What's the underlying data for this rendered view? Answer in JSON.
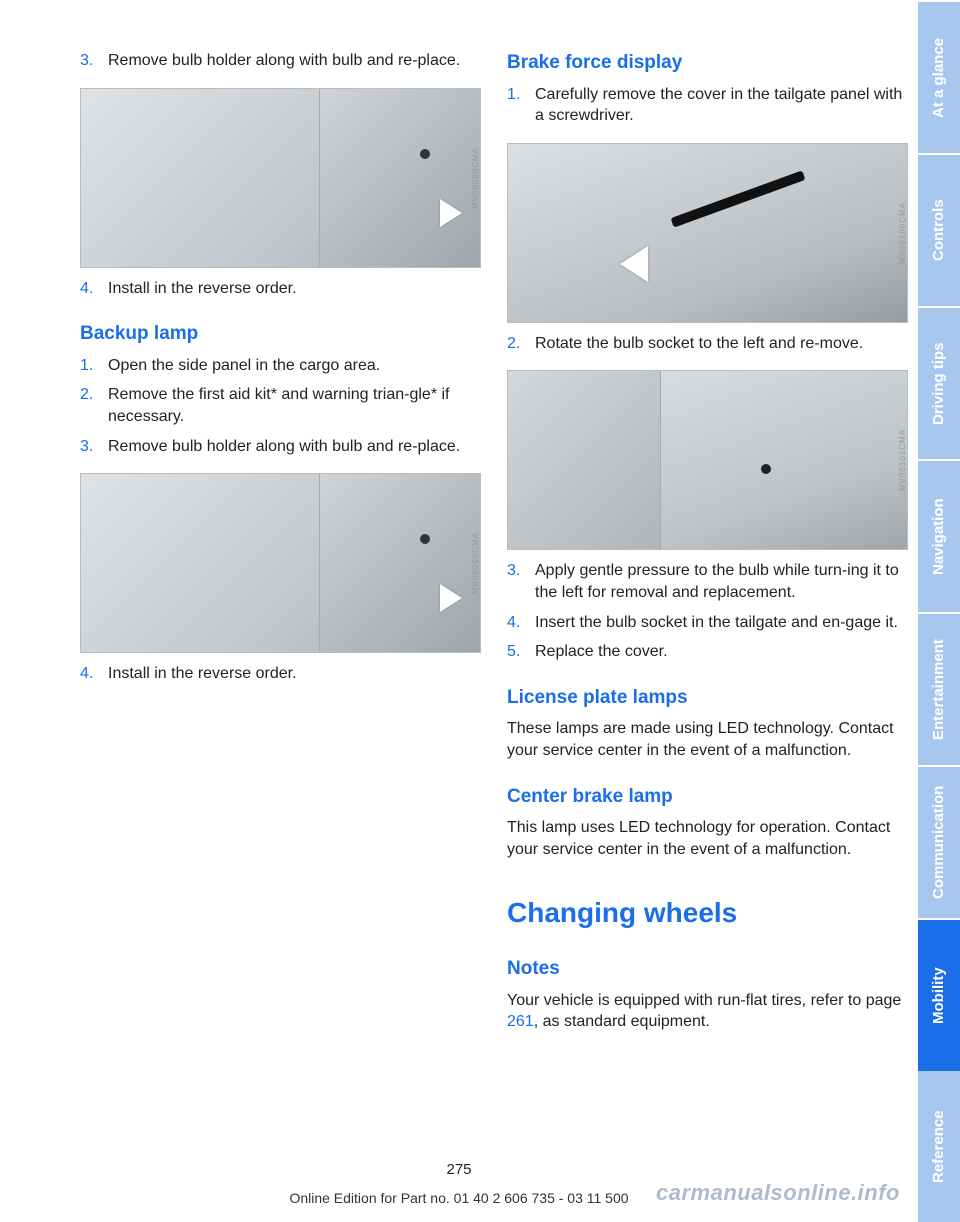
{
  "left": {
    "step3_num": "3.",
    "step3": "Remove bulb holder along with bulb and re‐place.",
    "fig1_id": "MV08099CMA",
    "step4_num": "4.",
    "step4": "Install in the reverse order.",
    "backup_heading": "Backup lamp",
    "b1_num": "1.",
    "b1": "Open the side panel in the cargo area.",
    "b2_num": "2.",
    "b2": "Remove the first aid kit* and warning trian‐gle* if necessary.",
    "b3_num": "3.",
    "b3": "Remove bulb holder along with bulb and re‐place.",
    "fig2_id": "MV08099CMA",
    "b4_num": "4.",
    "b4": "Install in the reverse order."
  },
  "right": {
    "brake_heading": "Brake force display",
    "bf1_num": "1.",
    "bf1": "Carefully remove the cover in the tailgate panel with a screwdriver.",
    "fig1_id": "MV08100CMA",
    "bf2_num": "2.",
    "bf2": "Rotate the bulb socket to the left and re‐move.",
    "fig2_id": "MV08101CMA",
    "bf3_num": "3.",
    "bf3": "Apply gentle pressure to the bulb while turn‐ing it to the left for removal and replacement.",
    "bf4_num": "4.",
    "bf4": "Insert the bulb socket in the tailgate and en‐gage it.",
    "bf5_num": "5.",
    "bf5": "Replace the cover.",
    "license_heading": "License plate lamps",
    "license_text": "These lamps are made using LED technology. Contact your service center in the event of a malfunction.",
    "center_heading": "Center brake lamp",
    "center_text": "This lamp uses LED technology for operation. Contact your service center in the event of a malfunction.",
    "changing_heading": "Changing wheels",
    "notes_heading": "Notes",
    "notes_pre": "Your vehicle is equipped with run-flat tires, refer to page ",
    "notes_link": "261",
    "notes_post": ", as standard equipment."
  },
  "tabs": {
    "t1": "At a glance",
    "t2": "Controls",
    "t3": "Driving tips",
    "t4": "Navigation",
    "t5": "Entertainment",
    "t6": "Communication",
    "t7": "Mobility",
    "t8": "Reference"
  },
  "footer": {
    "page": "275",
    "edition": "Online Edition for Part no. 01 40 2 606 735 - 03 11 500",
    "watermark": "carmanualsonline.info"
  },
  "colors": {
    "accent": "#1a6ee8",
    "tab_light": "#a8c7ef"
  }
}
